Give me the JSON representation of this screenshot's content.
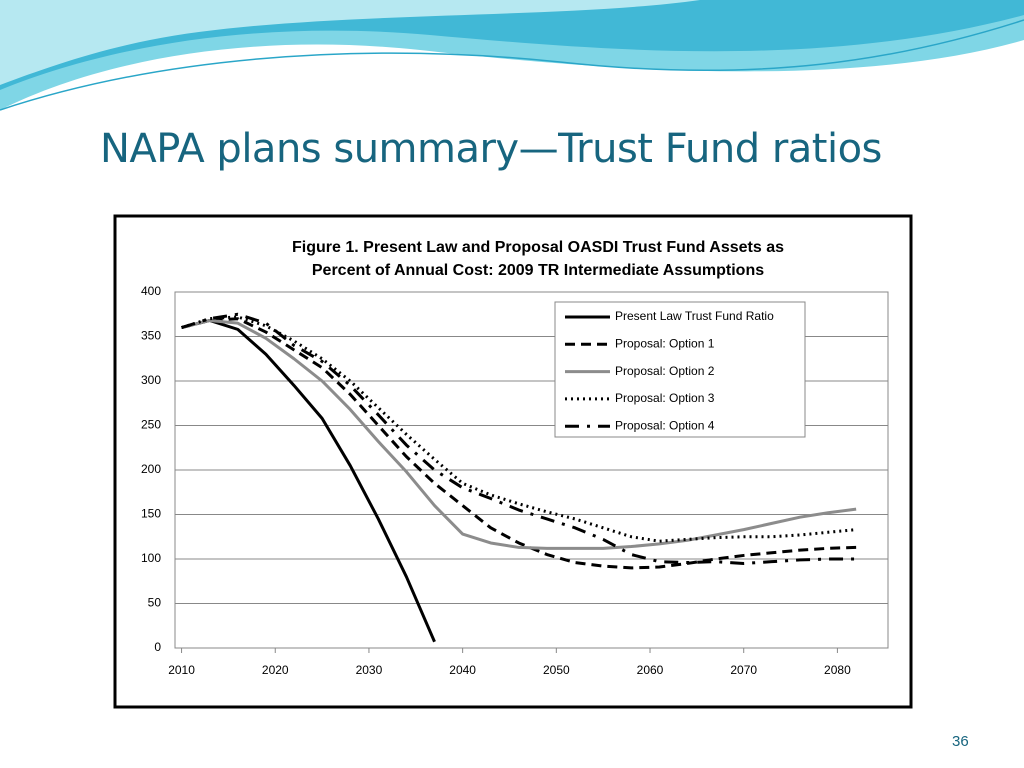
{
  "slide": {
    "title": "NAPA plans summary—Trust Fund ratios",
    "page_number": "36"
  },
  "chart_data": {
    "type": "line",
    "title": [
      "Figure 1. Present Law and Proposal OASDI Trust Fund Assets as",
      "Percent of Annual Cost: 2009 TR Intermediate Assumptions"
    ],
    "x": [
      2010,
      2013,
      2016,
      2019,
      2022,
      2025,
      2028,
      2031,
      2034,
      2037,
      2040,
      2043,
      2046,
      2049,
      2052,
      2055,
      2058,
      2061,
      2064,
      2067,
      2070,
      2073,
      2076,
      2079,
      2082
    ],
    "series": [
      {
        "name": "Present Law Trust Fund Ratio",
        "color": "#000000",
        "dash": "solid",
        "width": 3,
        "values": [
          360,
          368,
          358,
          330,
          295,
          258,
          205,
          145,
          80,
          7,
          null,
          null,
          null,
          null,
          null,
          null,
          null,
          null,
          null,
          null,
          null,
          null,
          null,
          null,
          null
        ]
      },
      {
        "name": "Proposal:  Option 1",
        "color": "#000000",
        "dash": "dash",
        "width": 3,
        "values": [
          360,
          368,
          370,
          355,
          335,
          315,
          285,
          250,
          215,
          185,
          160,
          135,
          118,
          105,
          96,
          92,
          90,
          91,
          95,
          100,
          104,
          107,
          110,
          112,
          113
        ]
      },
      {
        "name": "Proposal:  Option 2",
        "color": "#8c8c8c",
        "dash": "solid",
        "width": 3,
        "values": [
          360,
          368,
          365,
          348,
          325,
          300,
          268,
          232,
          198,
          160,
          128,
          118,
          113,
          112,
          112,
          112,
          114,
          117,
          121,
          127,
          133,
          140,
          147,
          152,
          156
        ]
      },
      {
        "name": "Proposal:  Option 3",
        "color": "#000000",
        "dash": "dot",
        "width": 3,
        "values": [
          360,
          370,
          372,
          362,
          345,
          325,
          300,
          270,
          240,
          212,
          185,
          172,
          162,
          153,
          145,
          135,
          125,
          120,
          122,
          124,
          125,
          125,
          127,
          130,
          133
        ]
      },
      {
        "name": "Proposal:  Option 4",
        "color": "#000000",
        "dash": "dashdot",
        "width": 3,
        "values": [
          360,
          370,
          375,
          365,
          340,
          322,
          295,
          262,
          228,
          200,
          180,
          168,
          155,
          145,
          135,
          122,
          105,
          97,
          96,
          97,
          95,
          97,
          99,
          100,
          100
        ]
      }
    ],
    "xlim": [
      2009.3,
      2085.4
    ],
    "xticks": [
      2010,
      2020,
      2030,
      2040,
      2050,
      2060,
      2070,
      2080
    ],
    "ylim": [
      0,
      400
    ],
    "yticks": [
      0,
      50,
      100,
      150,
      200,
      250,
      300,
      350,
      400
    ],
    "grid": true,
    "legend": "top-right"
  }
}
